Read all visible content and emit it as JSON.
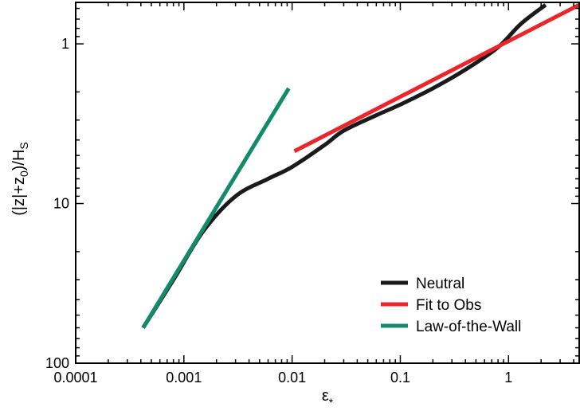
{
  "chart_data": {
    "type": "line",
    "xscale": "log",
    "yscale": "log",
    "y_inverted": true,
    "xlim": [
      0.0001,
      4.5
    ],
    "ylim": [
      0.55,
      100
    ],
    "xlabel_main": "ε",
    "xlabel_sub": "*",
    "ylabel": {
      "pre": "(|z|+z",
      "sub1": "0",
      "mid": ")/H",
      "sub2": "S"
    },
    "x_ticks": [
      {
        "value": 0.0001,
        "label": "0.0001"
      },
      {
        "value": 0.001,
        "label": "0.001"
      },
      {
        "value": 0.01,
        "label": "0.01"
      },
      {
        "value": 0.1,
        "label": "0.1"
      },
      {
        "value": 1,
        "label": "1"
      }
    ],
    "y_ticks": [
      {
        "value": 1,
        "label": "1"
      },
      {
        "value": 10,
        "label": "10"
      },
      {
        "value": 100,
        "label": "100"
      }
    ],
    "legend_position": "bottom-right",
    "grid": false,
    "series": [
      {
        "name": "Neutral",
        "color": "#1a1a1a",
        "x": [
          0.00042,
          0.0008,
          0.0015,
          0.003,
          0.006,
          0.01,
          0.02,
          0.03,
          0.06,
          0.1,
          0.2,
          0.4,
          0.8,
          1.3,
          2.2
        ],
        "y": [
          60,
          30,
          15,
          9,
          7,
          5.9,
          4.3,
          3.5,
          2.8,
          2.4,
          1.9,
          1.45,
          1.05,
          0.75,
          0.57
        ]
      },
      {
        "name": "Fit to Obs",
        "color": "#e8262c",
        "x": [
          0.0105,
          4.5
        ],
        "y": [
          4.7,
          0.57
        ]
      },
      {
        "name": "Law-of-the-Wall",
        "color": "#138a68",
        "x": [
          0.00042,
          0.0093
        ],
        "y": [
          60,
          1.9
        ]
      }
    ]
  }
}
